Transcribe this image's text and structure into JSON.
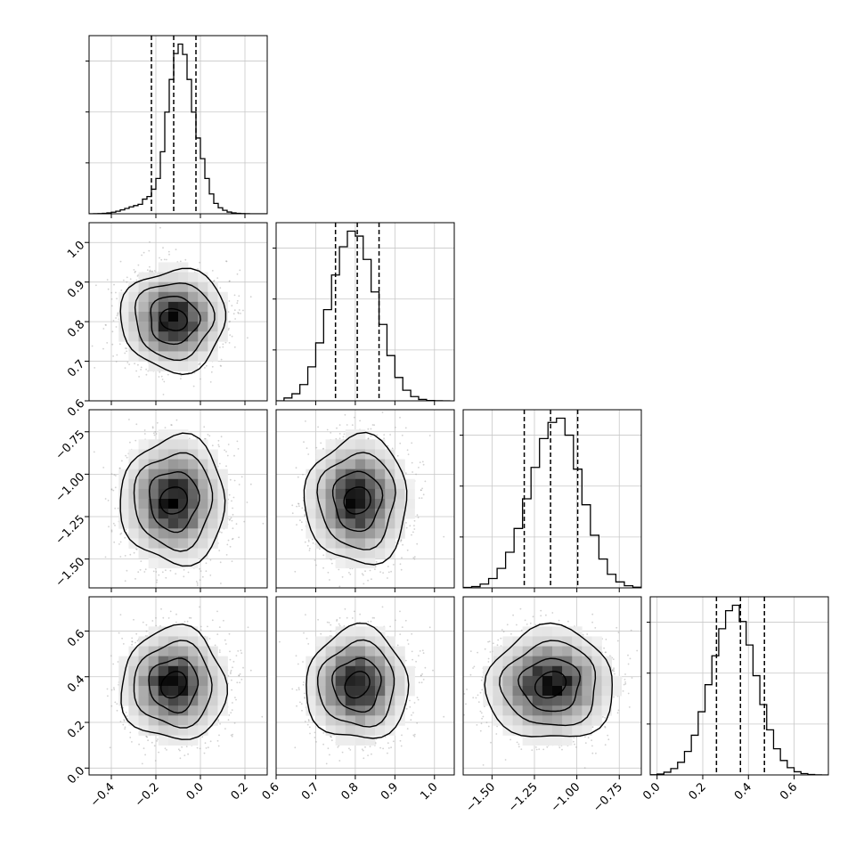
{
  "chart_data": {
    "type": "corner",
    "parameters": 4,
    "colors": {
      "line": "#000000",
      "grid": "#c8c8c8",
      "points": "#9a9a9a",
      "frame": "#000000"
    },
    "grid": true,
    "axes": [
      {
        "range": [
          -0.5,
          0.3
        ],
        "ticks": [
          -0.4,
          -0.2,
          0.0,
          0.2
        ],
        "tick_labels": [
          "−0.4",
          "−0.2",
          "0.0",
          "0.2"
        ]
      },
      {
        "range": [
          0.6,
          1.05
        ],
        "ticks": [
          0.6,
          0.7,
          0.8,
          0.9,
          1.0
        ],
        "tick_labels": [
          "0.6",
          "0.7",
          "0.8",
          "0.9",
          "1.0"
        ]
      },
      {
        "range": [
          -1.67,
          -0.62
        ],
        "ticks": [
          -1.5,
          -1.25,
          -1.0,
          -0.75
        ],
        "tick_labels": [
          "−1.50",
          "−1.25",
          "−1.00",
          "−0.75"
        ]
      },
      {
        "range": [
          -0.03,
          0.75
        ],
        "ticks": [
          0.0,
          0.2,
          0.4,
          0.6
        ],
        "tick_labels": [
          "0.0",
          "0.2",
          "0.4",
          "0.6"
        ]
      }
    ],
    "quantiles": [
      [
        -0.22,
        -0.12,
        -0.02
      ],
      [
        0.75,
        0.805,
        0.86
      ],
      [
        -1.31,
        -1.155,
        -0.995
      ],
      [
        0.26,
        0.365,
        0.47
      ]
    ],
    "histograms": [
      {
        "bins": [
          -0.5,
          -0.48,
          -0.46,
          -0.44,
          -0.42,
          -0.4,
          -0.38,
          -0.36,
          -0.34,
          -0.32,
          -0.3,
          -0.28,
          -0.26,
          -0.24,
          -0.22,
          -0.2,
          -0.18,
          -0.16,
          -0.14,
          -0.12,
          -0.1,
          -0.08,
          -0.06,
          -0.04,
          -0.02,
          0.0,
          0.02,
          0.04,
          0.06,
          0.08,
          0.1,
          0.12,
          0.14,
          0.16,
          0.18,
          0.2,
          0.22,
          0.24,
          0.26,
          0.28,
          0.3
        ],
        "counts": [
          0,
          1,
          2,
          5,
          10,
          18,
          30,
          45,
          62,
          80,
          95,
          110,
          170,
          200,
          285,
          410,
          720,
          1180,
          1560,
          1860,
          1970,
          1850,
          1560,
          1180,
          880,
          640,
          410,
          230,
          120,
          70,
          40,
          20,
          10,
          5,
          2,
          1,
          0,
          0,
          0,
          0
        ]
      },
      {
        "bins": [
          0.6,
          0.62,
          0.64,
          0.66,
          0.68,
          0.7,
          0.72,
          0.74,
          0.76,
          0.78,
          0.8,
          0.82,
          0.84,
          0.86,
          0.88,
          0.9,
          0.92,
          0.94,
          0.96,
          0.98,
          1.0,
          1.02,
          1.04
        ],
        "counts": [
          0,
          40,
          100,
          230,
          480,
          820,
          1290,
          1780,
          2180,
          2400,
          2330,
          2000,
          1540,
          1080,
          640,
          330,
          150,
          60,
          20,
          5,
          1,
          0
        ]
      },
      {
        "bins": [
          -1.67,
          -1.62,
          -1.57,
          -1.52,
          -1.47,
          -1.42,
          -1.37,
          -1.32,
          -1.27,
          -1.22,
          -1.17,
          -1.12,
          -1.07,
          -1.02,
          -0.97,
          -0.92,
          -0.87,
          -0.82,
          -0.77,
          -0.72,
          -0.67,
          -0.62
        ],
        "counts": [
          5,
          15,
          45,
          110,
          230,
          420,
          700,
          1050,
          1420,
          1760,
          1950,
          2000,
          1800,
          1400,
          980,
          620,
          340,
          160,
          70,
          25,
          8
        ]
      },
      {
        "bins": [
          -0.03,
          0.0,
          0.03,
          0.06,
          0.09,
          0.12,
          0.15,
          0.18,
          0.21,
          0.24,
          0.27,
          0.3,
          0.33,
          0.36,
          0.39,
          0.42,
          0.45,
          0.48,
          0.51,
          0.54,
          0.57,
          0.6,
          0.63,
          0.66,
          0.69,
          0.72,
          0.75
        ],
        "counts": [
          2,
          10,
          30,
          70,
          140,
          260,
          440,
          700,
          1000,
          1320,
          1620,
          1820,
          1880,
          1700,
          1440,
          1100,
          780,
          500,
          290,
          160,
          80,
          35,
          15,
          5,
          1,
          0
        ]
      }
    ],
    "posterior": {
      "means": [
        -0.12,
        0.805,
        -1.155,
        0.365
      ],
      "sds": [
        0.1,
        0.055,
        0.16,
        0.105
      ],
      "n_points": 2500
    }
  }
}
